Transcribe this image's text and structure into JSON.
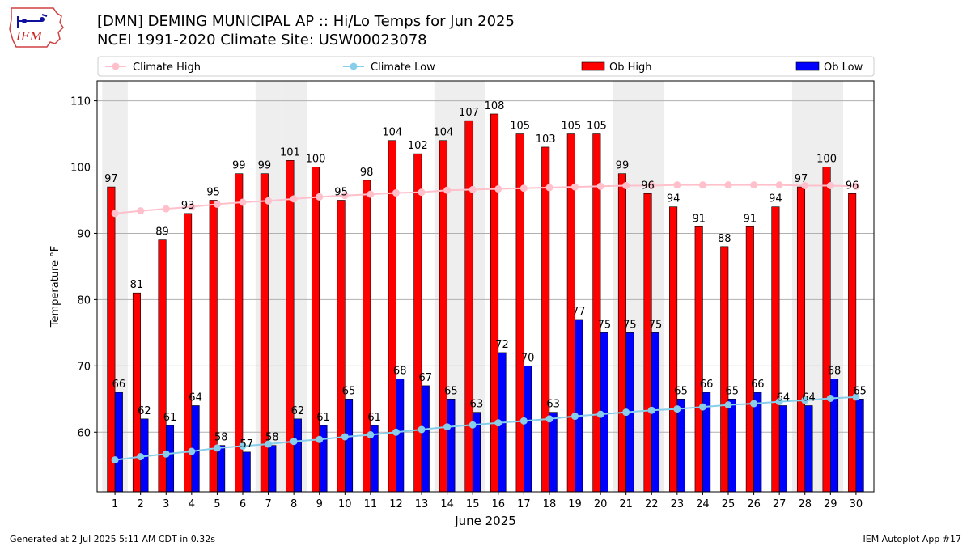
{
  "header": {
    "title_line1": "[DMN] DEMING MUNICIPAL AP :: Hi/Lo Temps for Jun 2025",
    "title_line2": "NCEI 1991-2020 Climate Site: USW00023078",
    "logo_text": "IEM"
  },
  "footer": {
    "left": "Generated at 2 Jul 2025 5:11 AM CDT in 0.32s",
    "right": "IEM Autoplot App #17"
  },
  "colors": {
    "ob_high": "#ff0000",
    "ob_low": "#0000ff",
    "climate_high": "#ffc0cb",
    "climate_low": "#87ceeb",
    "weekend_band": "#eeeeee",
    "grid": "#b0b0b0"
  },
  "chart_data": {
    "type": "bar",
    "xlabel": "June 2025",
    "ylabel": "Temperature °F",
    "ylim": [
      51,
      113
    ],
    "yticks": [
      60,
      70,
      80,
      90,
      100,
      110
    ],
    "grid": "horizontal",
    "legend_position": "top",
    "categories": [
      "1",
      "2",
      "3",
      "4",
      "5",
      "6",
      "7",
      "8",
      "9",
      "10",
      "11",
      "12",
      "13",
      "14",
      "15",
      "16",
      "17",
      "18",
      "19",
      "20",
      "21",
      "22",
      "23",
      "24",
      "25",
      "26",
      "27",
      "28",
      "29",
      "30"
    ],
    "shaded_days": [
      1,
      7,
      8,
      14,
      15,
      21,
      22,
      28,
      29
    ],
    "series": [
      {
        "name": "Climate High",
        "kind": "line",
        "values": [
          93.0,
          93.4,
          93.7,
          94.0,
          94.4,
          94.7,
          94.9,
          95.2,
          95.5,
          95.7,
          95.9,
          96.1,
          96.2,
          96.5,
          96.6,
          96.7,
          96.8,
          96.9,
          97.0,
          97.1,
          97.2,
          97.2,
          97.3,
          97.3,
          97.3,
          97.3,
          97.3,
          97.2,
          97.2,
          97.1
        ]
      },
      {
        "name": "Climate Low",
        "kind": "line",
        "values": [
          55.8,
          56.3,
          56.7,
          57.1,
          57.6,
          57.9,
          58.2,
          58.6,
          58.9,
          59.3,
          59.6,
          60.0,
          60.4,
          60.8,
          61.1,
          61.4,
          61.7,
          62.0,
          62.4,
          62.7,
          63.0,
          63.3,
          63.5,
          63.8,
          64.1,
          64.3,
          64.6,
          64.8,
          65.1,
          65.3
        ]
      },
      {
        "name": "Ob High",
        "kind": "bar",
        "values": [
          97,
          81,
          89,
          93,
          95,
          99,
          99,
          101,
          100,
          95,
          98,
          104,
          102,
          104,
          107,
          108,
          105,
          103,
          105,
          105,
          99,
          96,
          94,
          91,
          88,
          91,
          94,
          97,
          100,
          96
        ]
      },
      {
        "name": "Ob Low",
        "kind": "bar",
        "values": [
          66,
          62,
          61,
          64,
          58,
          57,
          58,
          62,
          61,
          65,
          61,
          68,
          67,
          65,
          63,
          72,
          70,
          63,
          77,
          75,
          75,
          75,
          65,
          66,
          65,
          66,
          64,
          64,
          68,
          65
        ]
      }
    ]
  }
}
